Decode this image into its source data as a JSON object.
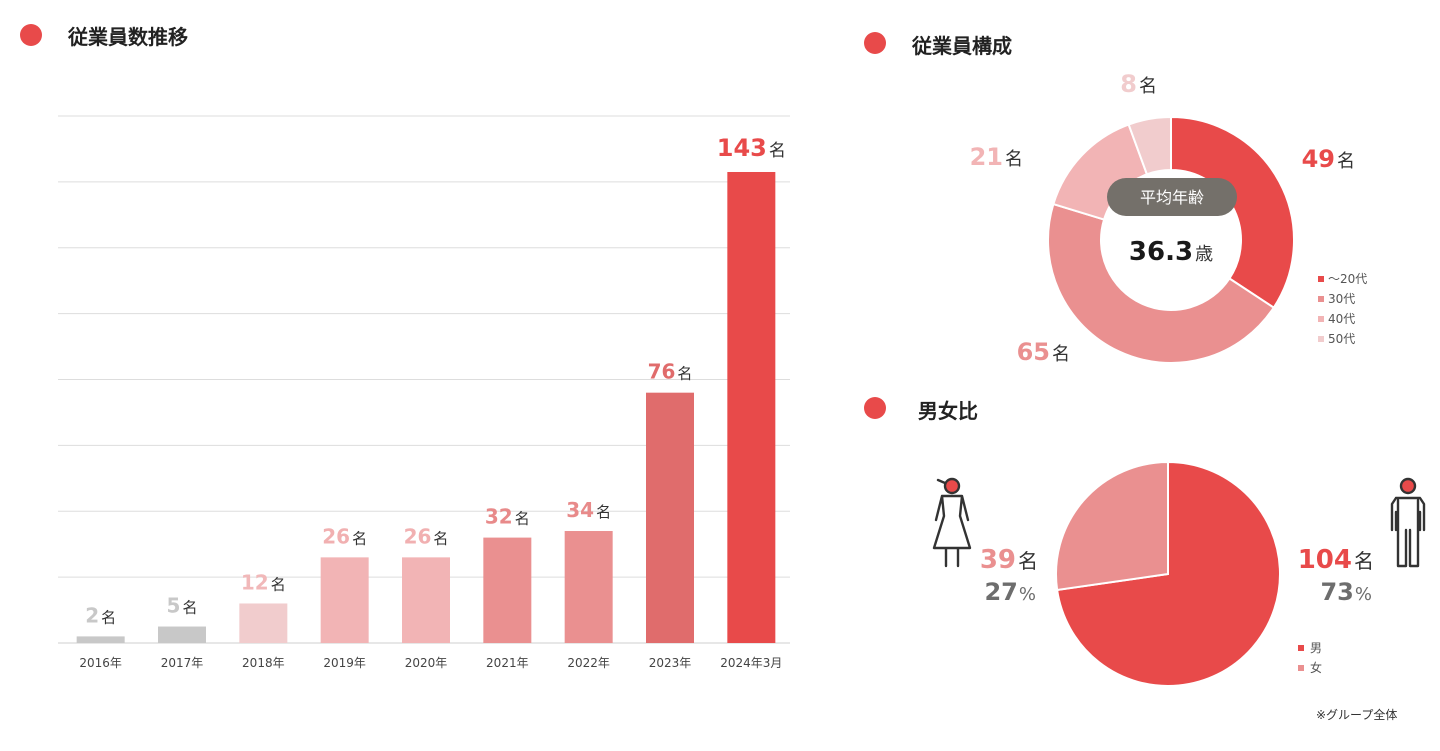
{
  "titles": {
    "growth": "従業員数推移",
    "composition": "従業員構成",
    "gender": "男女比"
  },
  "colors": {
    "accent": "#e84a4a",
    "grey": "#c8c8c8",
    "pink_light": "#f1cccd",
    "pink": "#f2b4b5",
    "rose": "#ea9090",
    "rose_dark": "#e06c6c",
    "red": "#e84a4a",
    "avg_badge": "#74706a"
  },
  "unit": "名",
  "percent_unit": "%",
  "footnote": "※グループ全体",
  "chart_data": [
    {
      "id": "employee-growth",
      "type": "bar",
      "categories": [
        "2016年",
        "2017年",
        "2018年",
        "2019年",
        "2020年",
        "2021年",
        "2022年",
        "2023年",
        "2024年3月"
      ],
      "values": [
        2,
        5,
        12,
        26,
        26,
        32,
        34,
        76,
        143
      ],
      "labels": [
        "2",
        "5",
        "12",
        "26",
        "26",
        "32",
        "34",
        "76",
        "143"
      ],
      "unit": "名",
      "ylim": [
        0,
        160
      ],
      "grid": true,
      "colors": [
        "#c8c8c8",
        "#c8c8c8",
        "#f1cccd",
        "#f2b4b5",
        "#f2b4b5",
        "#ea9090",
        "#ea9090",
        "#e06c6c",
        "#e84a4a"
      ],
      "label_colors": [
        "#c8c8c8",
        "#c8c8c8",
        "#f1b8b9",
        "#f1b0b1",
        "#f1b0b1",
        "#e88a8a",
        "#e88a8a",
        "#e06c6c",
        "#e84a4a"
      ]
    },
    {
      "id": "age-composition",
      "type": "pie",
      "donut": true,
      "categories": [
        "〜20代",
        "30代",
        "40代",
        "50代"
      ],
      "values": [
        49,
        65,
        21,
        8
      ],
      "labels": [
        "49",
        "65",
        "21",
        "8"
      ],
      "unit": "名",
      "colors": [
        "#e84a4a",
        "#ea9090",
        "#f2b4b5",
        "#f1cccd"
      ],
      "label_colors": [
        "#e84a4a",
        "#ea9090",
        "#f2b4b5",
        "#f1cccd"
      ],
      "legend_position": "right",
      "center": {
        "badge": "平均年齢",
        "value": "36.3",
        "unit": "歳"
      }
    },
    {
      "id": "gender-ratio",
      "type": "pie",
      "categories": [
        "男",
        "女"
      ],
      "values": [
        104,
        39
      ],
      "labels": [
        "104",
        "39"
      ],
      "percents": [
        "73",
        "27"
      ],
      "unit": "名",
      "colors": [
        "#e84a4a",
        "#ea9090"
      ],
      "label_colors": [
        "#e84a4a",
        "#ea9090"
      ],
      "percent_color": "#6d6d6d",
      "legend_position": "bottom-right"
    }
  ]
}
